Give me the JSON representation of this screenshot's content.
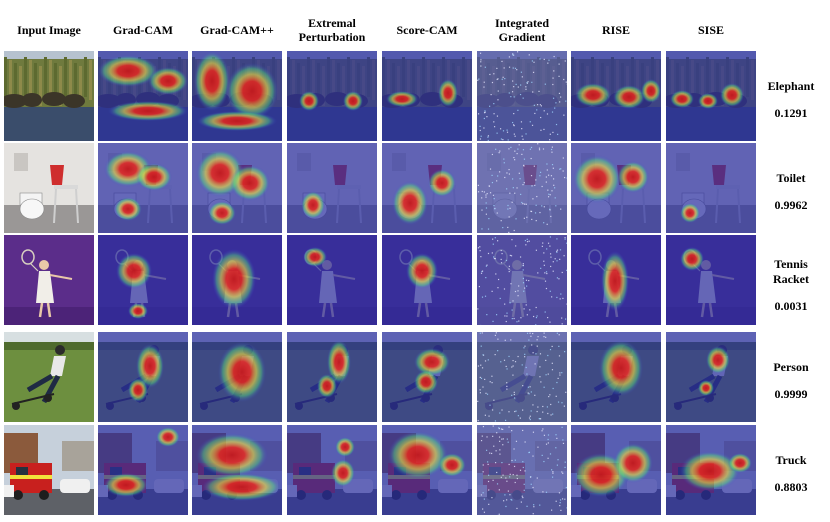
{
  "columns": [
    "Input Image",
    "Grad-CAM",
    "Grad-CAM++",
    "Extremal Perturbation",
    "Score-CAM",
    "Integrated Gradient",
    "RISE",
    "SISE"
  ],
  "rows": [
    {
      "label": "Elephant",
      "score": "0.1291",
      "scene": "elephant"
    },
    {
      "label": "Toilet",
      "score": "0.9962",
      "scene": "toilet"
    },
    {
      "label": "Tennis Racket",
      "score": "0.0031",
      "scene": "tennis"
    },
    {
      "label": "Person",
      "score": "0.9999",
      "scene": "person"
    },
    {
      "label": "Truck",
      "score": "0.8803",
      "scene": "truck"
    }
  ],
  "colors": {
    "heat_low": "#3b3fd6",
    "heat_mid": "#58e07a",
    "heat_high": "#e8271c",
    "heat_peak": "#c4181b",
    "hot_yellow": "#f2e23a"
  }
}
